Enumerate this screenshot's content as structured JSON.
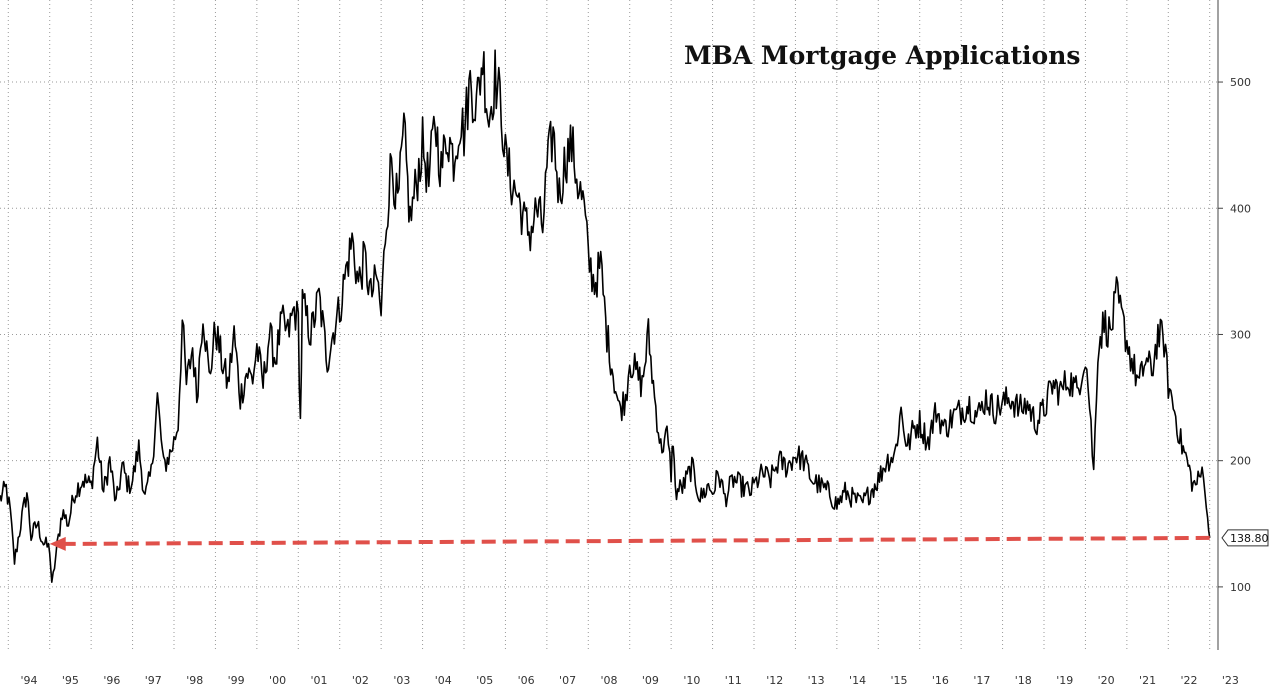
{
  "chart_data": {
    "type": "line",
    "title": "MBA Mortgage Applications",
    "xlabel": "",
    "ylabel": "",
    "x_ticks": [
      "'94",
      "'95",
      "'96",
      "'97",
      "'98",
      "'99",
      "'00",
      "'01",
      "'02",
      "'03",
      "'04",
      "'05",
      "'06",
      "'07",
      "'08",
      "'09",
      "'10",
      "'11",
      "'12",
      "'13",
      "'14",
      "'15",
      "'16",
      "'17",
      "'18",
      "'19",
      "'20",
      "'21",
      "'22",
      "'23"
    ],
    "y_ticks": [
      100,
      200,
      300,
      400,
      500
    ],
    "xlim": [
      1993.8,
      2023.2
    ],
    "ylim": [
      50,
      565
    ],
    "grid": true,
    "axis_side": "right",
    "last_value_label": "138.80",
    "reference_line": {
      "value": 138.8,
      "from_year": 1995.0,
      "to_year": 2023.0,
      "color": "#e0504a",
      "style": "dashed-arrow-left"
    },
    "series": [
      {
        "color": "#000000",
        "points": [
          [
            1993.8,
            170
          ],
          [
            1993.95,
            178
          ],
          [
            1994.05,
            158
          ],
          [
            1994.15,
            120
          ],
          [
            1994.3,
            150
          ],
          [
            1994.45,
            175
          ],
          [
            1994.55,
            140
          ],
          [
            1994.7,
            150
          ],
          [
            1994.85,
            135
          ],
          [
            1995.0,
            130
          ],
          [
            1995.05,
            100
          ],
          [
            1995.15,
            125
          ],
          [
            1995.3,
            160
          ],
          [
            1995.45,
            150
          ],
          [
            1995.6,
            175
          ],
          [
            1995.8,
            185
          ],
          [
            1996.0,
            180
          ],
          [
            1996.15,
            215
          ],
          [
            1996.3,
            175
          ],
          [
            1996.45,
            200
          ],
          [
            1996.6,
            165
          ],
          [
            1996.75,
            195
          ],
          [
            1996.9,
            180
          ],
          [
            1997.0,
            185
          ],
          [
            1997.15,
            210
          ],
          [
            1997.3,
            170
          ],
          [
            1997.45,
            190
          ],
          [
            1997.6,
            250
          ],
          [
            1997.75,
            195
          ],
          [
            1997.9,
            205
          ],
          [
            1998.0,
            215
          ],
          [
            1998.1,
            230
          ],
          [
            1998.2,
            310
          ],
          [
            1998.3,
            260
          ],
          [
            1998.45,
            290
          ],
          [
            1998.55,
            250
          ],
          [
            1998.7,
            320
          ],
          [
            1998.85,
            265
          ],
          [
            1999.0,
            305
          ],
          [
            1999.15,
            280
          ],
          [
            1999.3,
            260
          ],
          [
            1999.45,
            300
          ],
          [
            1999.6,
            250
          ],
          [
            1999.75,
            270
          ],
          [
            1999.9,
            265
          ],
          [
            2000.0,
            290
          ],
          [
            2000.15,
            260
          ],
          [
            2000.3,
            300
          ],
          [
            2000.45,
            280
          ],
          [
            2000.6,
            310
          ],
          [
            2000.75,
            300
          ],
          [
            2000.9,
            320
          ],
          [
            2001.0,
            310
          ],
          [
            2001.05,
            230
          ],
          [
            2001.1,
            325
          ],
          [
            2001.3,
            300
          ],
          [
            2001.5,
            330
          ],
          [
            2001.7,
            280
          ],
          [
            2001.9,
            310
          ],
          [
            2002.0,
            320
          ],
          [
            2002.15,
            350
          ],
          [
            2002.3,
            375
          ],
          [
            2002.45,
            340
          ],
          [
            2002.6,
            360
          ],
          [
            2002.75,
            330
          ],
          [
            2002.9,
            345
          ],
          [
            2003.0,
            315
          ],
          [
            2003.1,
            380
          ],
          [
            2003.25,
            440
          ],
          [
            2003.4,
            400
          ],
          [
            2003.55,
            460
          ],
          [
            2003.7,
            390
          ],
          [
            2003.85,
            420
          ],
          [
            2004.0,
            450
          ],
          [
            2004.15,
            420
          ],
          [
            2004.3,
            470
          ],
          [
            2004.45,
            430
          ],
          [
            2004.6,
            460
          ],
          [
            2004.75,
            440
          ],
          [
            2004.9,
            470
          ],
          [
            2005.0,
            460
          ],
          [
            2005.15,
            500
          ],
          [
            2005.3,
            480
          ],
          [
            2005.45,
            520
          ],
          [
            2005.6,
            470
          ],
          [
            2005.75,
            505
          ],
          [
            2005.9,
            480
          ],
          [
            2006.0,
            440
          ],
          [
            2006.15,
            420
          ],
          [
            2006.3,
            410
          ],
          [
            2006.45,
            390
          ],
          [
            2006.6,
            380
          ],
          [
            2006.75,
            400
          ],
          [
            2006.9,
            385
          ],
          [
            2007.0,
            430
          ],
          [
            2007.15,
            460
          ],
          [
            2007.3,
            410
          ],
          [
            2007.45,
            440
          ],
          [
            2007.6,
            450
          ],
          [
            2007.75,
            420
          ],
          [
            2007.9,
            400
          ],
          [
            2008.0,
            360
          ],
          [
            2008.15,
            340
          ],
          [
            2008.3,
            355
          ],
          [
            2008.45,
            300
          ],
          [
            2008.6,
            270
          ],
          [
            2008.75,
            240
          ],
          [
            2008.9,
            250
          ],
          [
            2009.0,
            280
          ],
          [
            2009.15,
            270
          ],
          [
            2009.3,
            260
          ],
          [
            2009.45,
            300
          ],
          [
            2009.6,
            250
          ],
          [
            2009.75,
            210
          ],
          [
            2009.9,
            220
          ],
          [
            2010.0,
            190
          ],
          [
            2010.05,
            220
          ],
          [
            2010.1,
            175
          ],
          [
            2010.3,
            180
          ],
          [
            2010.5,
            195
          ],
          [
            2010.7,
            170
          ],
          [
            2010.9,
            180
          ],
          [
            2011.0,
            175
          ],
          [
            2011.15,
            190
          ],
          [
            2011.3,
            170
          ],
          [
            2011.5,
            185
          ],
          [
            2011.7,
            180
          ],
          [
            2011.9,
            175
          ],
          [
            2012.0,
            180
          ],
          [
            2012.2,
            190
          ],
          [
            2012.4,
            185
          ],
          [
            2012.6,
            200
          ],
          [
            2012.8,
            195
          ],
          [
            2013.0,
            205
          ],
          [
            2013.2,
            200
          ],
          [
            2013.4,
            185
          ],
          [
            2013.6,
            180
          ],
          [
            2013.8,
            175
          ],
          [
            2014.0,
            165
          ],
          [
            2014.2,
            175
          ],
          [
            2014.4,
            170
          ],
          [
            2014.6,
            165
          ],
          [
            2014.8,
            175
          ],
          [
            2015.0,
            185
          ],
          [
            2015.2,
            200
          ],
          [
            2015.4,
            205
          ],
          [
            2015.55,
            240
          ],
          [
            2015.7,
            210
          ],
          [
            2015.85,
            225
          ],
          [
            2016.0,
            230
          ],
          [
            2016.2,
            215
          ],
          [
            2016.4,
            240
          ],
          [
            2016.6,
            225
          ],
          [
            2016.8,
            235
          ],
          [
            2017.0,
            240
          ],
          [
            2017.2,
            245
          ],
          [
            2017.4,
            235
          ],
          [
            2017.6,
            250
          ],
          [
            2017.8,
            240
          ],
          [
            2018.0,
            245
          ],
          [
            2018.2,
            250
          ],
          [
            2018.4,
            240
          ],
          [
            2018.6,
            245
          ],
          [
            2018.8,
            230
          ],
          [
            2019.0,
            240
          ],
          [
            2019.2,
            260
          ],
          [
            2019.4,
            255
          ],
          [
            2019.6,
            265
          ],
          [
            2019.8,
            255
          ],
          [
            2019.9,
            270
          ],
          [
            2020.0,
            285
          ],
          [
            2020.1,
            245
          ],
          [
            2020.2,
            190
          ],
          [
            2020.3,
            290
          ],
          [
            2020.45,
            310
          ],
          [
            2020.6,
            300
          ],
          [
            2020.75,
            330
          ],
          [
            2020.9,
            310
          ],
          [
            2021.0,
            295
          ],
          [
            2021.15,
            275
          ],
          [
            2021.3,
            260
          ],
          [
            2021.45,
            280
          ],
          [
            2021.6,
            270
          ],
          [
            2021.75,
            300
          ],
          [
            2021.9,
            295
          ],
          [
            2022.0,
            260
          ],
          [
            2022.15,
            240
          ],
          [
            2022.3,
            215
          ],
          [
            2022.45,
            200
          ],
          [
            2022.6,
            180
          ],
          [
            2022.75,
            185
          ],
          [
            2022.85,
            195
          ],
          [
            2022.95,
            150
          ],
          [
            2023.0,
            138.8
          ]
        ]
      }
    ]
  }
}
